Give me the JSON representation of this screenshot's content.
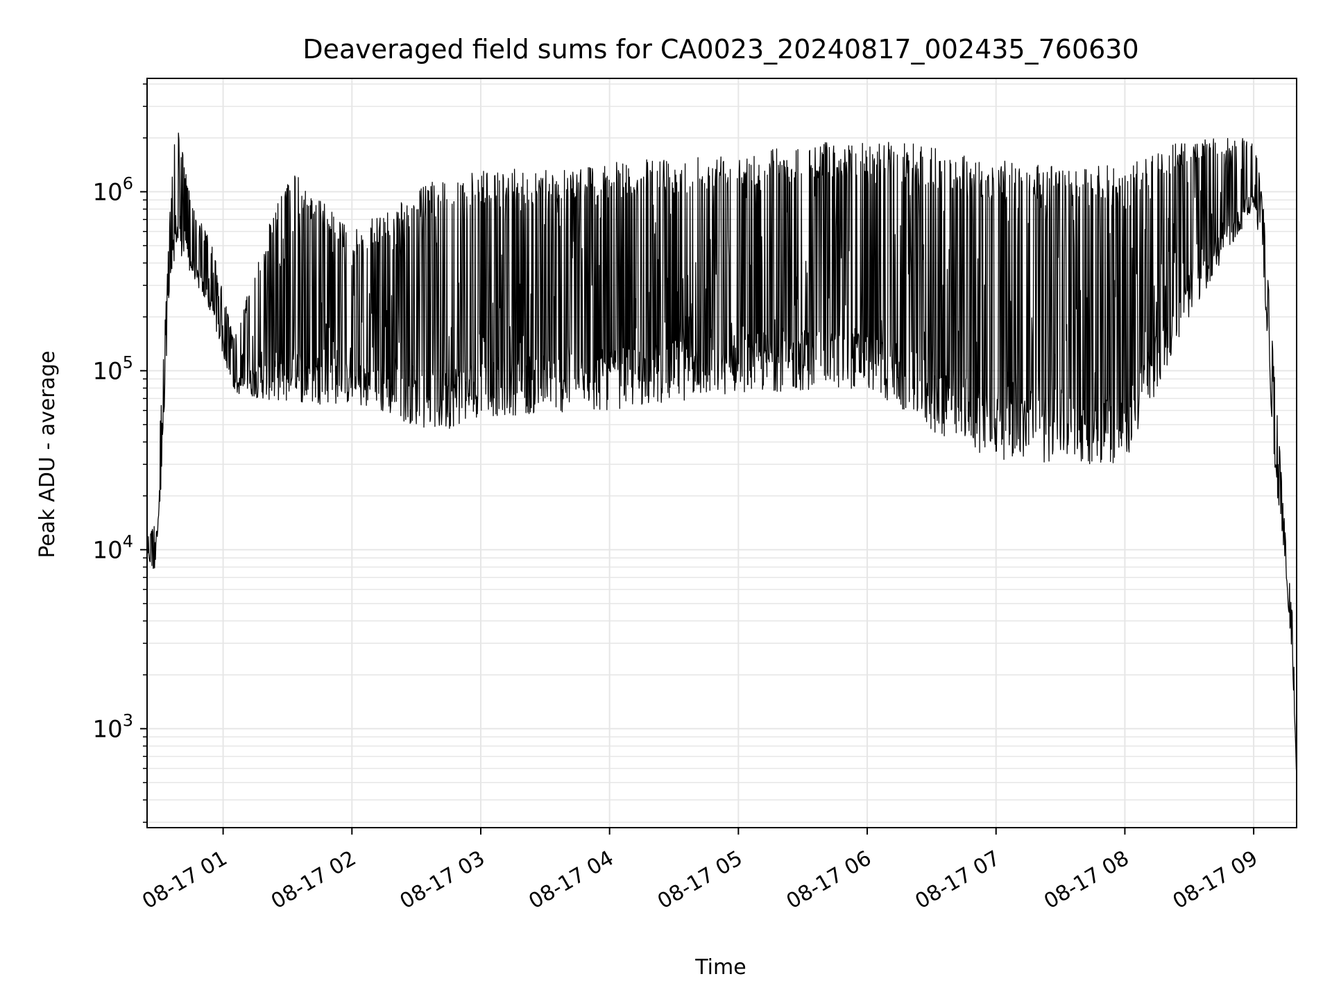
{
  "chart_data": {
    "type": "line",
    "title": "Deaveraged field sums for CA0023_20240817_002435_760630",
    "xlabel": "Time",
    "ylabel": "Peak ADU - average",
    "yscale": "log",
    "grid": true,
    "legend": "none",
    "line_color": "#000000",
    "grid_color": "#e6e6e6",
    "xlim": [
      "2024-08-17 00:24:35",
      "2024-08-17 09:20:00"
    ],
    "ylim": [
      280,
      4300000
    ],
    "x_ticks": [
      {
        "t": "2024-08-17 01:00",
        "label": "08-17 01"
      },
      {
        "t": "2024-08-17 02:00",
        "label": "08-17 02"
      },
      {
        "t": "2024-08-17 03:00",
        "label": "08-17 03"
      },
      {
        "t": "2024-08-17 04:00",
        "label": "08-17 04"
      },
      {
        "t": "2024-08-17 05:00",
        "label": "08-17 05"
      },
      {
        "t": "2024-08-17 06:00",
        "label": "08-17 06"
      },
      {
        "t": "2024-08-17 07:00",
        "label": "08-17 07"
      },
      {
        "t": "2024-08-17 08:00",
        "label": "08-17 08"
      },
      {
        "t": "2024-08-17 09:00",
        "label": "08-17 09"
      }
    ],
    "y_ticks": [
      {
        "value": 1000,
        "base": "10",
        "exp": "3"
      },
      {
        "value": 10000,
        "base": "10",
        "exp": "4"
      },
      {
        "value": 100000,
        "base": "10",
        "exp": "5"
      },
      {
        "value": 1000000,
        "base": "10",
        "exp": "6"
      }
    ],
    "envelope": {
      "description_points": [
        {
          "t": "2024-08-17 00:24:35",
          "low": 9500,
          "high": 12000
        },
        {
          "t": "2024-08-17 00:28:00",
          "low": 7000,
          "high": 14000
        },
        {
          "t": "2024-08-17 00:31:00",
          "low": 22000,
          "high": 60000
        },
        {
          "t": "2024-08-17 00:35:00",
          "low": 250000,
          "high": 700000
        },
        {
          "t": "2024-08-17 00:38:00",
          "low": 500000,
          "high": 2800000
        },
        {
          "t": "2024-08-17 00:45:00",
          "low": 350000,
          "high": 900000
        },
        {
          "t": "2024-08-17 00:55:00",
          "low": 200000,
          "high": 500000
        },
        {
          "t": "2024-08-17 01:05:00",
          "low": 75000,
          "high": 150000
        },
        {
          "t": "2024-08-17 01:30:00",
          "low": 65000,
          "high": 1400000
        },
        {
          "t": "2024-08-17 02:00:00",
          "low": 65000,
          "high": 600000
        },
        {
          "t": "2024-08-17 02:40:00",
          "low": 45000,
          "high": 1200000
        },
        {
          "t": "2024-08-17 03:00:00",
          "low": 55000,
          "high": 1300000
        },
        {
          "t": "2024-08-17 04:00:00",
          "low": 60000,
          "high": 1450000
        },
        {
          "t": "2024-08-17 05:00:00",
          "low": 75000,
          "high": 1700000
        },
        {
          "t": "2024-08-17 06:00:00",
          "low": 80000,
          "high": 2000000
        },
        {
          "t": "2024-08-17 06:30:00",
          "low": 45000,
          "high": 1800000
        },
        {
          "t": "2024-08-17 07:00:00",
          "low": 32000,
          "high": 1500000
        },
        {
          "t": "2024-08-17 07:30:00",
          "low": 30000,
          "high": 1400000
        },
        {
          "t": "2024-08-17 08:00:00",
          "low": 30000,
          "high": 1400000
        },
        {
          "t": "2024-08-17 08:30:00",
          "low": 200000,
          "high": 2000000
        },
        {
          "t": "2024-08-17 09:00:00",
          "low": 800000,
          "high": 2000000
        },
        {
          "t": "2024-08-17 09:04:00",
          "low": 450000,
          "high": 1000000
        },
        {
          "t": "2024-08-17 09:10:00",
          "low": 25000,
          "high": 90000
        },
        {
          "t": "2024-08-17 09:15:00",
          "low": 7000,
          "high": 11000
        },
        {
          "t": "2024-08-17 09:18:00",
          "low": 2500,
          "high": 4500
        },
        {
          "t": "2024-08-17 09:20:00",
          "low": 500,
          "high": 800
        }
      ]
    }
  }
}
